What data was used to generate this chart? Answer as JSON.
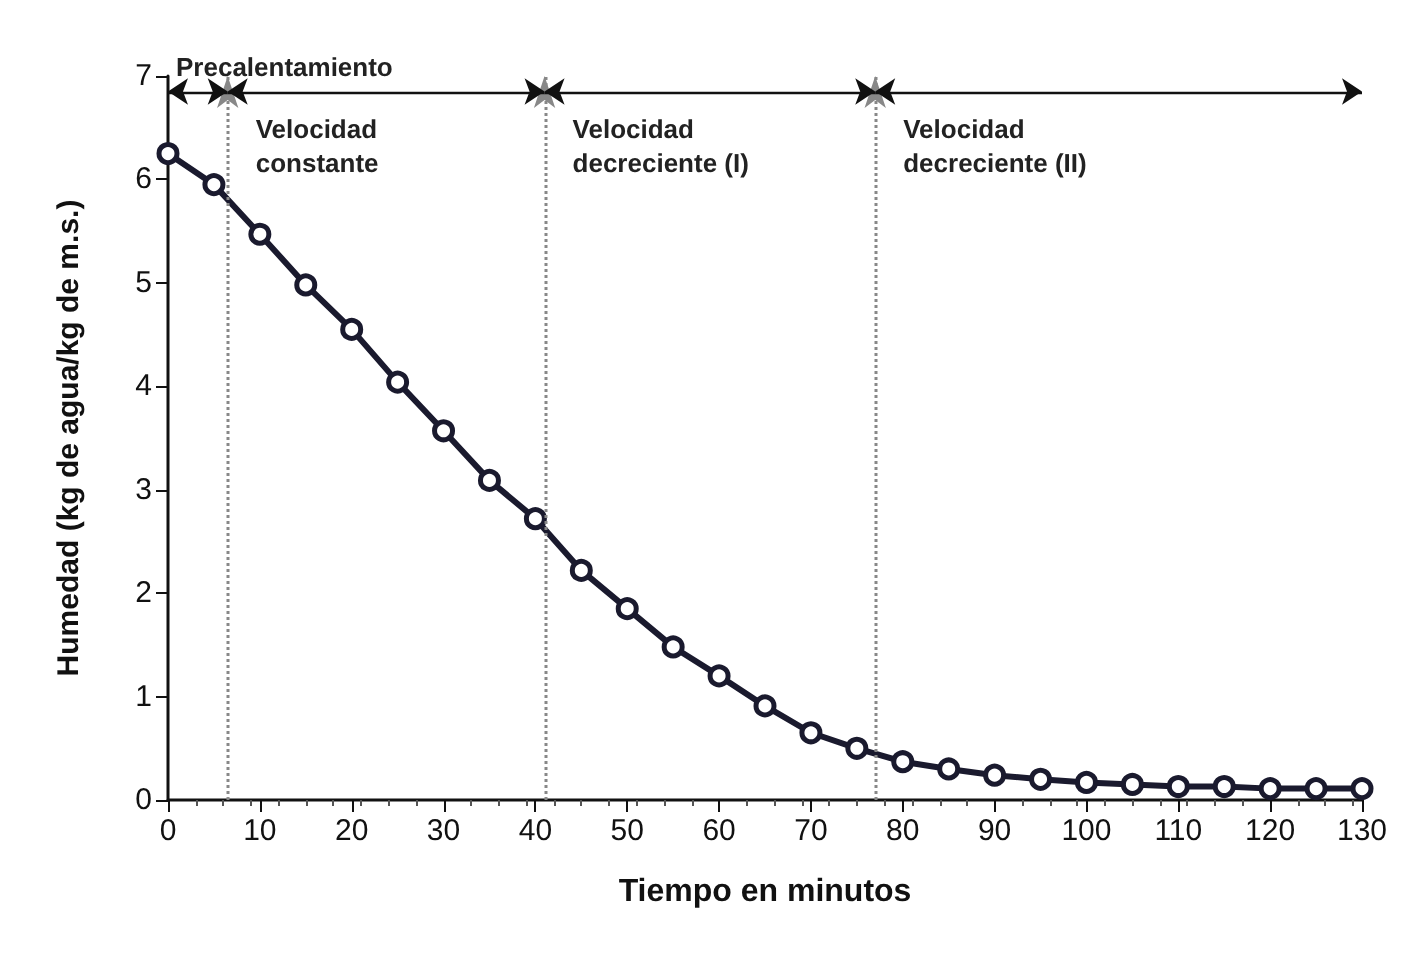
{
  "chart_data": {
    "type": "line",
    "xlabel": "Tiempo en minutos",
    "ylabel": "Humedad (kg de agua/kg de m.s.)",
    "x": [
      0,
      5,
      10,
      15,
      20,
      25,
      30,
      35,
      40,
      45,
      50,
      55,
      60,
      65,
      70,
      75,
      80,
      85,
      90,
      95,
      100,
      105,
      110,
      115,
      120,
      125,
      130
    ],
    "series": [
      {
        "color": "#1a1a2e",
        "values": [
          6.25,
          5.95,
          5.47,
          4.98,
          4.55,
          4.04,
          3.57,
          3.09,
          2.72,
          2.22,
          1.85,
          1.48,
          1.2,
          0.91,
          0.65,
          0.5,
          0.37,
          0.3,
          0.24,
          0.2,
          0.17,
          0.15,
          0.13,
          0.13,
          0.11,
          0.11,
          0.11
        ]
      }
    ],
    "xlim": [
      0,
      130
    ],
    "xticks": [
      0,
      10,
      20,
      30,
      40,
      50,
      60,
      70,
      80,
      90,
      100,
      110,
      120,
      130
    ],
    "ylim": [
      0,
      7
    ],
    "yticks": [
      0,
      1,
      2,
      3,
      4,
      5,
      6,
      7
    ],
    "marker": "circle",
    "line_style": "solid",
    "ref_lines": [
      {
        "axis": "x",
        "value": 6.5,
        "label": null,
        "line_style": "dotted",
        "color": "#888888"
      },
      {
        "axis": "x",
        "value": 41,
        "label": null,
        "line_style": "dotted",
        "color": "#888888"
      },
      {
        "axis": "x",
        "value": 77,
        "label": null,
        "line_style": "dotted",
        "color": "#888888"
      }
    ],
    "annotations": [
      {
        "text": "Precalentamiento",
        "x": 6.5,
        "y": 6.85
      },
      {
        "text": "Velocidad\nconstante",
        "x": 6.5,
        "y": 6.85
      },
      {
        "text": "Velocidad\ndecreciente (I)",
        "x": 41,
        "y": 6.85
      },
      {
        "text": "Velocidad\ndecreciente (II)",
        "x": 77,
        "y": 6.85
      }
    ]
  }
}
